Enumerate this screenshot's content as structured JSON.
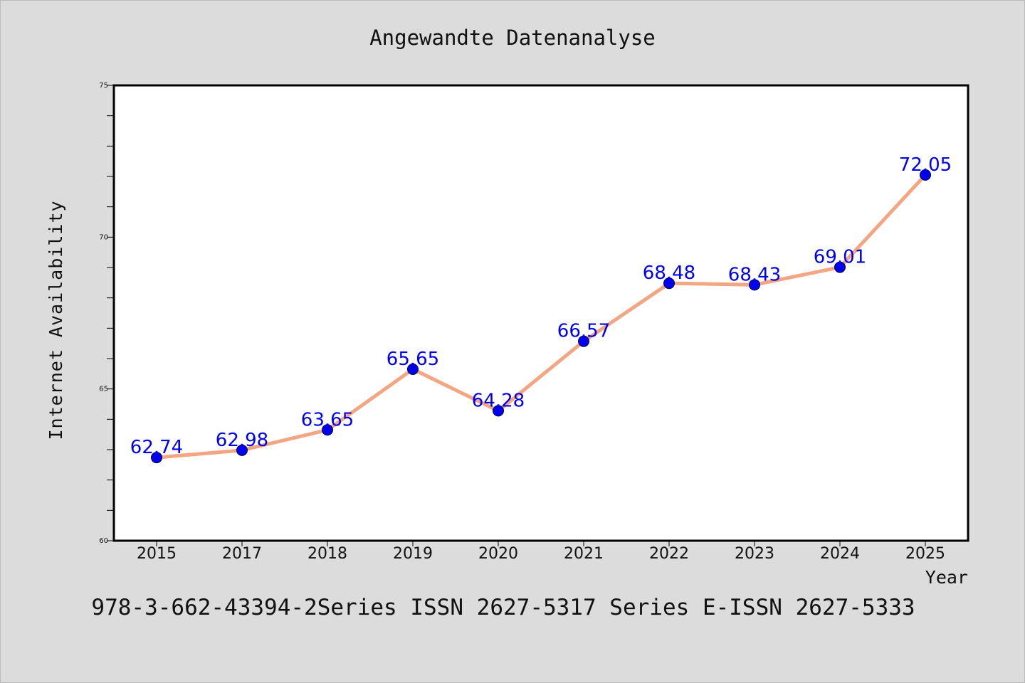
{
  "chart_data": {
    "type": "line",
    "title": "Angewandte Datenanalyse",
    "xlabel": "Year",
    "ylabel": "Internet Availability",
    "categories": [
      "2015",
      "2017",
      "2018",
      "2019",
      "2020",
      "2021",
      "2022",
      "2023",
      "2024",
      "2025"
    ],
    "series": [
      {
        "values": [
          62.74,
          62.98,
          63.65,
          65.65,
          64.28,
          66.57,
          68.48,
          68.43,
          69.01,
          72.05
        ],
        "data_labels": [
          "62.74",
          "62.98",
          "63.65",
          "65.65",
          "64.28",
          "66.57",
          "68.48",
          "68.43",
          "69.01",
          "72.05"
        ]
      }
    ],
    "ylim": [
      60,
      75
    ],
    "y_major_ticks": [
      60,
      65,
      70,
      75
    ],
    "y_major_tick_labels": [
      "60",
      "65",
      "70",
      "75"
    ],
    "y_minor_step": 1,
    "grid": false,
    "legend": "none"
  },
  "footer_text": "978-3-662-43394-2Series ISSN 2627-5317 Series E-ISSN 2627-5333",
  "colors": {
    "background": "#dcdcdc",
    "plot_background": "#ffffff",
    "line": "#f4a582",
    "marker": "#0000ee",
    "data_label": "#0000ee",
    "text": "#111111"
  }
}
